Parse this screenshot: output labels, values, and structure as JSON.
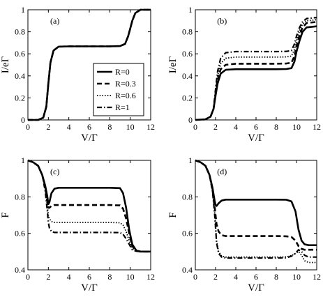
{
  "chart_data": [
    {
      "type": "line",
      "panel_label": "(a)",
      "xlabel": "V/Γ",
      "ylabel": "I/eΓ",
      "xlim": [
        0,
        12
      ],
      "ylim": [
        0,
        1
      ],
      "xticks": [
        "0",
        "2",
        "4",
        "6",
        "8",
        "10",
        "12"
      ],
      "yticks": [
        "0",
        "0.2",
        "0.4",
        "0.6",
        "0.8",
        "1"
      ],
      "series": [
        {
          "name": "R=0",
          "style": "solid",
          "x": [
            0,
            1,
            1.5,
            1.8,
            2.0,
            2.2,
            2.5,
            3,
            4,
            6,
            8,
            9,
            9.5,
            9.8,
            10,
            10.2,
            10.5,
            11,
            12
          ],
          "y": [
            0,
            0,
            0.02,
            0.12,
            0.33,
            0.52,
            0.63,
            0.665,
            0.668,
            0.668,
            0.668,
            0.67,
            0.69,
            0.76,
            0.83,
            0.9,
            0.97,
            1.0,
            1.0
          ]
        },
        {
          "name": "R=0.3",
          "style": "dashed",
          "x": [
            0,
            1,
            1.5,
            1.8,
            2.0,
            2.2,
            2.5,
            3,
            4,
            6,
            8,
            9,
            9.5,
            9.8,
            10,
            10.2,
            10.5,
            11,
            12
          ],
          "y": [
            0,
            0,
            0.02,
            0.12,
            0.33,
            0.52,
            0.63,
            0.665,
            0.668,
            0.668,
            0.668,
            0.67,
            0.69,
            0.76,
            0.83,
            0.9,
            0.97,
            1.0,
            1.0
          ]
        },
        {
          "name": "R=0.6",
          "style": "dotted",
          "x": [
            0,
            1,
            1.5,
            1.8,
            2.0,
            2.2,
            2.5,
            3,
            4,
            6,
            8,
            9,
            9.5,
            9.8,
            10,
            10.2,
            10.5,
            11,
            12
          ],
          "y": [
            0,
            0,
            0.02,
            0.12,
            0.33,
            0.52,
            0.63,
            0.665,
            0.668,
            0.668,
            0.668,
            0.67,
            0.69,
            0.76,
            0.83,
            0.9,
            0.97,
            1.0,
            1.0
          ]
        },
        {
          "name": "R=1",
          "style": "dashdot",
          "x": [
            0,
            1,
            1.5,
            1.8,
            2.0,
            2.2,
            2.5,
            3,
            4,
            6,
            8,
            9,
            9.5,
            9.8,
            10,
            10.2,
            10.5,
            11,
            12
          ],
          "y": [
            0,
            0,
            0.02,
            0.12,
            0.33,
            0.52,
            0.63,
            0.665,
            0.668,
            0.668,
            0.668,
            0.67,
            0.69,
            0.76,
            0.83,
            0.9,
            0.97,
            1.0,
            1.0
          ]
        }
      ]
    },
    {
      "type": "line",
      "panel_label": "(b)",
      "xlabel": "V/Γ",
      "ylabel": "I/eΓ",
      "xlim": [
        0,
        12
      ],
      "ylim": [
        0,
        1
      ],
      "xticks": [
        "0",
        "2",
        "4",
        "6",
        "8",
        "10",
        "12"
      ],
      "yticks": [
        "0",
        "0.2",
        "0.4",
        "0.6",
        "0.8",
        "1"
      ],
      "legend": {
        "position": "lower-left",
        "entries": [
          "R=0",
          "R=0.3",
          "R=0.6",
          "R=1"
        ]
      },
      "series": [
        {
          "name": "R=0",
          "style": "solid",
          "x": [
            0,
            1,
            1.5,
            1.8,
            2.0,
            2.2,
            2.5,
            3,
            4,
            6,
            8,
            9,
            9.5,
            9.8,
            10,
            10.3,
            10.6,
            11,
            12
          ],
          "y": [
            0,
            0.005,
            0.03,
            0.1,
            0.22,
            0.33,
            0.42,
            0.455,
            0.46,
            0.46,
            0.46,
            0.462,
            0.47,
            0.53,
            0.62,
            0.72,
            0.8,
            0.84,
            0.85
          ]
        },
        {
          "name": "R=0.3",
          "style": "dashed",
          "x": [
            0,
            1,
            1.5,
            1.8,
            2.0,
            2.2,
            2.5,
            3,
            4,
            6,
            8,
            9,
            9.5,
            9.8,
            10,
            10.3,
            10.6,
            11,
            12
          ],
          "y": [
            0,
            0.005,
            0.03,
            0.1,
            0.24,
            0.36,
            0.46,
            0.5,
            0.51,
            0.51,
            0.51,
            0.512,
            0.52,
            0.58,
            0.67,
            0.77,
            0.84,
            0.88,
            0.89
          ]
        },
        {
          "name": "R=0.6",
          "style": "dotted",
          "x": [
            0,
            1,
            1.5,
            1.8,
            2.0,
            2.2,
            2.5,
            3,
            4,
            6,
            8,
            9,
            9.5,
            9.8,
            10,
            10.3,
            10.6,
            11,
            12
          ],
          "y": [
            0,
            0.005,
            0.03,
            0.1,
            0.26,
            0.4,
            0.51,
            0.56,
            0.57,
            0.57,
            0.57,
            0.572,
            0.58,
            0.64,
            0.72,
            0.81,
            0.87,
            0.9,
            0.91
          ]
        },
        {
          "name": "R=1",
          "style": "dashdot",
          "x": [
            0,
            1,
            1.5,
            1.8,
            2.0,
            2.2,
            2.5,
            3,
            4,
            6,
            8,
            9,
            9.5,
            9.8,
            10,
            10.3,
            10.6,
            11,
            12
          ],
          "y": [
            0,
            0.005,
            0.03,
            0.1,
            0.28,
            0.44,
            0.56,
            0.61,
            0.62,
            0.62,
            0.62,
            0.622,
            0.63,
            0.69,
            0.76,
            0.84,
            0.89,
            0.92,
            0.93
          ]
        }
      ]
    },
    {
      "type": "line",
      "panel_label": "(c)",
      "xlabel": "V/Γ",
      "ylabel": "F",
      "xlim": [
        0,
        12
      ],
      "ylim": [
        0.4,
        1
      ],
      "xticks": [
        "0",
        "2",
        "4",
        "6",
        "8",
        "10",
        "12"
      ],
      "yticks": [
        "0.4",
        "0.6",
        "0.8",
        "1"
      ],
      "series": [
        {
          "name": "R=0",
          "style": "solid",
          "x": [
            0,
            0.5,
            1,
            1.4,
            1.7,
            1.9,
            2.0,
            2.1,
            2.3,
            2.6,
            3,
            5,
            8,
            9,
            9.3,
            9.6,
            9.9,
            10.2,
            10.6,
            11,
            12
          ],
          "y": [
            1.0,
            0.99,
            0.97,
            0.92,
            0.86,
            0.8,
            0.76,
            0.77,
            0.82,
            0.845,
            0.85,
            0.85,
            0.85,
            0.848,
            0.82,
            0.74,
            0.62,
            0.54,
            0.505,
            0.5,
            0.5
          ]
        },
        {
          "name": "R=0.3",
          "style": "dashed",
          "x": [
            0,
            0.5,
            1,
            1.4,
            1.7,
            1.9,
            2.0,
            2.1,
            2.3,
            2.6,
            3,
            5,
            8,
            9,
            9.3,
            9.6,
            9.9,
            10.2,
            10.6,
            11,
            12
          ],
          "y": [
            1.0,
            0.99,
            0.97,
            0.92,
            0.85,
            0.78,
            0.74,
            0.74,
            0.75,
            0.755,
            0.755,
            0.755,
            0.755,
            0.753,
            0.735,
            0.68,
            0.6,
            0.53,
            0.505,
            0.5,
            0.5
          ]
        },
        {
          "name": "R=0.6",
          "style": "dotted",
          "x": [
            0,
            0.5,
            1,
            1.4,
            1.7,
            1.9,
            2.0,
            2.1,
            2.3,
            2.6,
            3,
            5,
            8,
            9,
            9.3,
            9.6,
            9.9,
            10.2,
            10.6,
            11,
            12
          ],
          "y": [
            1.0,
            0.99,
            0.97,
            0.92,
            0.84,
            0.75,
            0.7,
            0.68,
            0.665,
            0.66,
            0.66,
            0.66,
            0.66,
            0.658,
            0.645,
            0.61,
            0.56,
            0.52,
            0.503,
            0.5,
            0.5
          ]
        },
        {
          "name": "R=1",
          "style": "dashdot",
          "x": [
            0,
            0.5,
            1,
            1.4,
            1.7,
            1.9,
            2.0,
            2.1,
            2.3,
            2.6,
            3,
            5,
            8,
            9,
            9.3,
            9.6,
            9.9,
            10.2,
            10.6,
            11,
            12
          ],
          "y": [
            1.0,
            0.99,
            0.97,
            0.92,
            0.83,
            0.72,
            0.66,
            0.63,
            0.61,
            0.605,
            0.605,
            0.605,
            0.605,
            0.604,
            0.595,
            0.57,
            0.54,
            0.51,
            0.502,
            0.5,
            0.5
          ]
        }
      ]
    },
    {
      "type": "line",
      "panel_label": "(d)",
      "xlabel": "V/Γ",
      "ylabel": "F",
      "xlim": [
        0,
        12
      ],
      "ylim": [
        0.4,
        1
      ],
      "xticks": [
        "0",
        "2",
        "4",
        "6",
        "8",
        "10",
        "12"
      ],
      "yticks": [
        "0.4",
        "0.6",
        "0.8",
        "1"
      ],
      "series": [
        {
          "name": "R=0",
          "style": "solid",
          "x": [
            0,
            0.5,
            1,
            1.4,
            1.7,
            1.9,
            2.0,
            2.1,
            2.3,
            2.6,
            3,
            5,
            8,
            9,
            9.5,
            9.9,
            10.2,
            10.5,
            10.8,
            11.2,
            12
          ],
          "y": [
            1.0,
            0.99,
            0.97,
            0.92,
            0.85,
            0.78,
            0.755,
            0.75,
            0.765,
            0.78,
            0.785,
            0.785,
            0.785,
            0.784,
            0.775,
            0.72,
            0.62,
            0.56,
            0.54,
            0.535,
            0.535
          ]
        },
        {
          "name": "R=0.3",
          "style": "dashed",
          "x": [
            0,
            0.5,
            1,
            1.4,
            1.7,
            1.9,
            2.0,
            2.1,
            2.3,
            2.6,
            3,
            5,
            8,
            9,
            9.5,
            9.9,
            10.2,
            10.5,
            10.8,
            11.2,
            12
          ],
          "y": [
            1.0,
            0.99,
            0.97,
            0.92,
            0.84,
            0.75,
            0.7,
            0.65,
            0.61,
            0.59,
            0.585,
            0.585,
            0.585,
            0.584,
            0.58,
            0.56,
            0.53,
            0.515,
            0.51,
            0.51,
            0.51
          ]
        },
        {
          "name": "R=0.6",
          "style": "dotted",
          "x": [
            0,
            0.5,
            1,
            1.4,
            1.7,
            1.9,
            2.0,
            2.1,
            2.3,
            2.6,
            3,
            5,
            8,
            9,
            9.5,
            9.9,
            10.2,
            10.5,
            10.8,
            11.2,
            12
          ],
          "y": [
            1.0,
            0.99,
            0.97,
            0.92,
            0.83,
            0.72,
            0.64,
            0.56,
            0.5,
            0.475,
            0.47,
            0.47,
            0.47,
            0.471,
            0.478,
            0.49,
            0.5,
            0.48,
            0.45,
            0.44,
            0.44
          ]
        },
        {
          "name": "R=1",
          "style": "dashdot",
          "x": [
            0,
            0.5,
            1,
            1.4,
            1.7,
            1.9,
            2.0,
            2.1,
            2.3,
            2.6,
            3,
            5,
            8,
            9,
            9.5,
            9.9,
            10.2,
            10.5,
            10.8,
            11.2,
            12
          ],
          "y": [
            1.0,
            0.99,
            0.97,
            0.92,
            0.83,
            0.71,
            0.63,
            0.55,
            0.49,
            0.47,
            0.465,
            0.465,
            0.465,
            0.466,
            0.475,
            0.49,
            0.51,
            0.5,
            0.48,
            0.47,
            0.47
          ]
        }
      ]
    }
  ]
}
